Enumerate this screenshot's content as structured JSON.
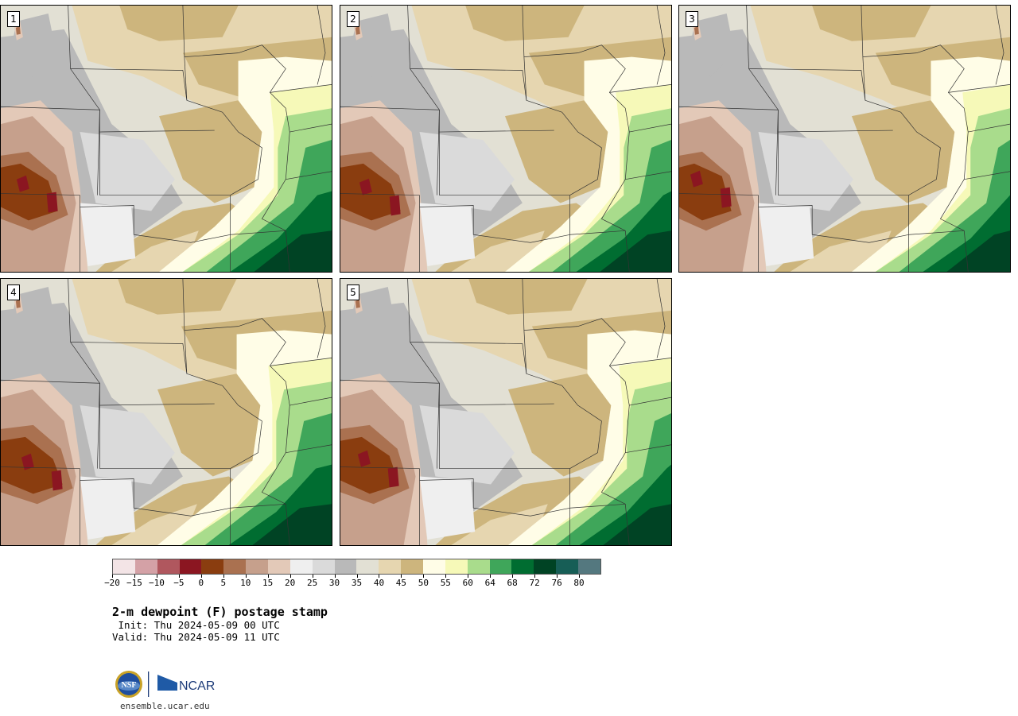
{
  "panels": [
    {
      "label": "1",
      "variant": 0
    },
    {
      "label": "2",
      "variant": 1
    },
    {
      "label": "3",
      "variant": 2
    },
    {
      "label": "4",
      "variant": 3
    },
    {
      "label": "5",
      "variant": 4
    }
  ],
  "colorbar": {
    "colors": [
      "#f3e4e6",
      "#d4a1a6",
      "#b0575e",
      "#8b1621",
      "#8a3d0f",
      "#aa7150",
      "#c6a08c",
      "#e3c9b8",
      "#efefef",
      "#dadada",
      "#b9b9b9",
      "#e2e0d4",
      "#e6d6b0",
      "#cdb57d",
      "#fffde7",
      "#f6f9b8",
      "#a9dc8c",
      "#3fa65a",
      "#006d31",
      "#004324",
      "#175e56",
      "#54787f"
    ],
    "tick_labels": [
      "−20",
      "−15",
      "−10",
      "−5",
      "0",
      "5",
      "10",
      "15",
      "20",
      "25",
      "30",
      "35",
      "40",
      "45",
      "50",
      "55",
      "60",
      "64",
      "68",
      "72",
      "76",
      "80"
    ]
  },
  "title": "2-m dewpoint (F) postage stamp",
  "init": " Init: Thu 2024-05-09 00 UTC",
  "valid": "Valid: Thu 2024-05-09 11 UTC",
  "logos": {
    "nsf": "NSF",
    "ncar": "NCAR"
  },
  "footer_url": "ensemble.ucar.edu"
}
